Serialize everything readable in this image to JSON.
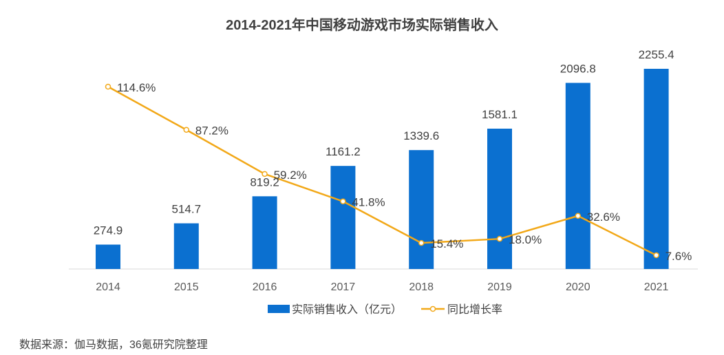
{
  "chart_data": {
    "type": "bar",
    "title": "2014-2021年中国移动游戏市场实际销售收入",
    "categories": [
      "2014",
      "2015",
      "2016",
      "2017",
      "2018",
      "2019",
      "2020",
      "2021"
    ],
    "series": [
      {
        "name": "实际销售收入（亿元）",
        "type": "bar",
        "color": "#0B70D0",
        "values": [
          274.9,
          514.7,
          819.2,
          1161.2,
          1339.6,
          1581.1,
          2096.8,
          2255.4
        ],
        "labels": [
          "274.9",
          "514.7",
          "819.2",
          "1161.2",
          "1339.6",
          "1581.1",
          "2096.8",
          "2255.4"
        ]
      },
      {
        "name": "同比增长率",
        "type": "line",
        "color": "#F2A818",
        "values": [
          114.6,
          87.2,
          59.2,
          41.8,
          15.4,
          18.0,
          32.6,
          7.6
        ],
        "labels": [
          "114.6%",
          "87.2%",
          "59.2%",
          "41.8%",
          "15.4%",
          "18.0%",
          "32.6%",
          "7.6%"
        ]
      }
    ],
    "legend_position": "bottom",
    "grid": false
  },
  "source_note": "数据来源：伽马数据，36氪研究院整理"
}
